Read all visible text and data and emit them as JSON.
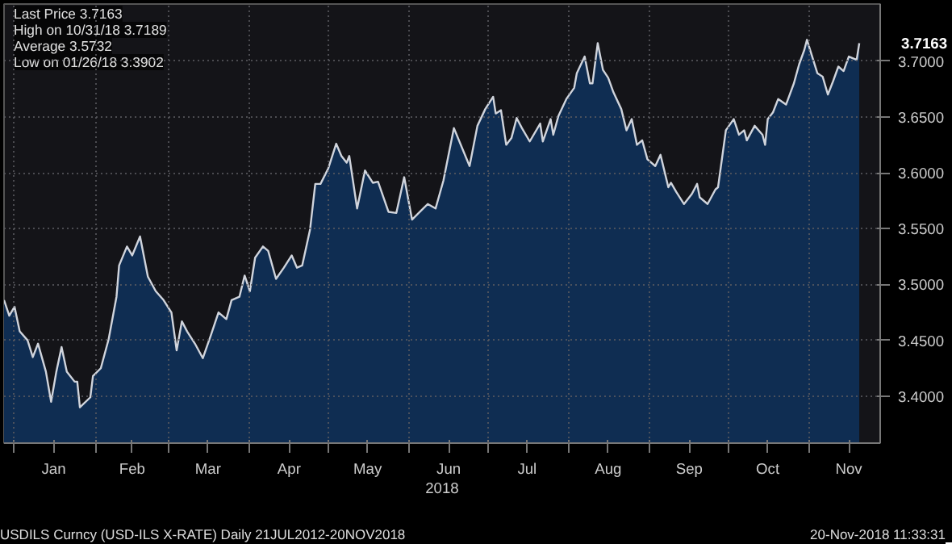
{
  "chart_data": {
    "type": "area",
    "xlabel": "2018",
    "x": [
      "2017-12-28",
      "2017-12-30",
      "2018-01-01",
      "2018-01-03",
      "2018-01-06",
      "2018-01-08",
      "2018-01-10",
      "2018-01-13",
      "2018-01-15",
      "2018-01-17",
      "2018-01-19",
      "2018-01-21",
      "2018-01-24",
      "2018-01-25",
      "2018-01-26",
      "2018-01-30",
      "2018-01-31",
      "2018-02-03",
      "2018-02-06",
      "2018-02-09",
      "2018-02-10",
      "2018-02-13",
      "2018-02-15",
      "2018-02-18",
      "2018-02-21",
      "2018-02-24",
      "2018-02-27",
      "2018-03-02",
      "2018-03-04",
      "2018-03-06",
      "2018-03-08",
      "2018-03-11",
      "2018-03-14",
      "2018-03-17",
      "2018-03-20",
      "2018-03-23",
      "2018-03-25",
      "2018-03-28",
      "2018-03-30",
      "2018-04-01",
      "2018-04-03",
      "2018-04-06",
      "2018-04-08",
      "2018-04-11",
      "2018-04-14",
      "2018-04-17",
      "2018-04-19",
      "2018-04-21",
      "2018-04-24",
      "2018-04-26",
      "2018-04-28",
      "2018-05-01",
      "2018-05-04",
      "2018-05-06",
      "2018-05-08",
      "2018-05-09",
      "2018-05-12",
      "2018-05-15",
      "2018-05-18",
      "2018-05-20",
      "2018-05-24",
      "2018-05-27",
      "2018-05-30",
      "2018-06-02",
      "2018-06-05",
      "2018-06-08",
      "2018-06-11",
      "2018-06-14",
      "2018-06-18",
      "2018-06-21",
      "2018-06-24",
      "2018-06-27",
      "2018-06-30",
      "2018-07-03",
      "2018-07-04",
      "2018-07-06",
      "2018-07-08",
      "2018-07-10",
      "2018-07-12",
      "2018-07-14",
      "2018-07-17",
      "2018-07-21",
      "2018-07-22",
      "2018-07-25",
      "2018-07-26",
      "2018-07-28",
      "2018-07-31",
      "2018-08-03",
      "2018-08-04",
      "2018-08-07",
      "2018-08-09",
      "2018-08-10",
      "2018-08-12",
      "2018-08-14",
      "2018-08-16",
      "2018-08-18",
      "2018-08-21",
      "2018-08-23",
      "2018-08-25",
      "2018-08-27",
      "2018-08-29",
      "2018-08-31",
      "2018-09-03",
      "2018-09-05",
      "2018-09-08",
      "2018-09-09",
      "2018-09-11",
      "2018-09-14",
      "2018-09-17",
      "2018-09-19",
      "2018-09-20",
      "2018-09-23",
      "2018-09-26",
      "2018-09-27",
      "2018-09-30",
      "2018-10-03",
      "2018-10-05",
      "2018-10-07",
      "2018-10-08",
      "2018-10-11",
      "2018-10-14",
      "2018-10-15",
      "2018-10-16",
      "2018-10-18",
      "2018-10-20",
      "2018-10-23",
      "2018-10-26",
      "2018-10-28",
      "2018-10-30",
      "2018-10-31",
      "2018-11-04",
      "2018-11-06",
      "2018-11-08",
      "2018-11-10",
      "2018-11-12",
      "2018-11-14",
      "2018-11-16",
      "2018-11-19",
      "2018-11-20"
    ],
    "series": [
      {
        "color": "#0f2d52",
        "values": [
          3.486,
          3.472,
          3.48,
          3.458,
          3.45,
          3.435,
          3.447,
          3.422,
          3.395,
          3.422,
          3.444,
          3.422,
          3.413,
          3.413,
          3.39,
          3.399,
          3.418,
          3.425,
          3.451,
          3.489,
          3.517,
          3.534,
          3.526,
          3.543,
          3.507,
          3.494,
          3.486,
          3.475,
          3.441,
          3.467,
          3.458,
          3.447,
          3.434,
          3.454,
          3.475,
          3.469,
          3.486,
          3.489,
          3.508,
          3.494,
          3.524,
          3.534,
          3.53,
          3.505,
          3.515,
          3.526,
          3.515,
          3.517,
          3.549,
          3.59,
          3.59,
          3.604,
          3.626,
          3.615,
          3.609,
          3.615,
          3.568,
          3.602,
          3.591,
          3.592,
          3.565,
          3.564,
          3.596,
          3.558,
          3.565,
          3.572,
          3.568,
          3.593,
          3.64,
          3.623,
          3.606,
          3.642,
          3.657,
          3.668,
          3.653,
          3.656,
          3.625,
          3.631,
          3.649,
          3.64,
          3.628,
          3.644,
          3.628,
          3.648,
          3.634,
          3.651,
          3.666,
          3.676,
          3.689,
          3.704,
          3.68,
          3.68,
          3.716,
          3.692,
          3.685,
          3.672,
          3.657,
          3.638,
          3.648,
          3.625,
          3.629,
          3.612,
          3.606,
          3.616,
          3.587,
          3.591,
          3.583,
          3.572,
          3.581,
          3.59,
          3.578,
          3.572,
          3.585,
          3.587,
          3.638,
          3.648,
          3.634,
          3.638,
          3.629,
          3.642,
          3.634,
          3.625,
          3.648,
          3.654,
          3.666,
          3.661,
          3.68,
          3.697,
          3.71,
          3.719,
          3.689,
          3.686,
          3.67,
          3.682,
          3.695,
          3.691,
          3.704,
          3.701,
          3.716
        ]
      }
    ],
    "xlim": [
      "2017-12-28",
      "2018-11-28"
    ],
    "xticks": [
      {
        "value": "2018-01-01",
        "label": null
      },
      {
        "value": "2018-01-16",
        "label": "Jan"
      },
      {
        "value": "2018-02-01",
        "label": null
      },
      {
        "value": "2018-02-15",
        "label": "Feb"
      },
      {
        "value": "2018-03-01",
        "label": null
      },
      {
        "value": "2018-03-16",
        "label": "Mar"
      },
      {
        "value": "2018-04-01",
        "label": null
      },
      {
        "value": "2018-04-16",
        "label": "Apr"
      },
      {
        "value": "2018-05-01",
        "label": null
      },
      {
        "value": "2018-05-16",
        "label": "May"
      },
      {
        "value": "2018-06-01",
        "label": null
      },
      {
        "value": "2018-06-16",
        "label": "Jun"
      },
      {
        "value": "2018-07-01",
        "label": null
      },
      {
        "value": "2018-07-16",
        "label": "Jul"
      },
      {
        "value": "2018-08-01",
        "label": null
      },
      {
        "value": "2018-08-16",
        "label": "Aug"
      },
      {
        "value": "2018-09-01",
        "label": null
      },
      {
        "value": "2018-09-16",
        "label": "Sep"
      },
      {
        "value": "2018-10-01",
        "label": null
      },
      {
        "value": "2018-10-16",
        "label": "Oct"
      },
      {
        "value": "2018-11-01",
        "label": null
      },
      {
        "value": "2018-11-16",
        "label": "Nov"
      }
    ],
    "ylim": [
      3.358,
      3.751
    ],
    "yticks": [
      {
        "value": 3.4,
        "label": "3.4000"
      },
      {
        "value": 3.45,
        "label": "3.4500"
      },
      {
        "value": 3.5,
        "label": "3.5000"
      },
      {
        "value": 3.55,
        "label": "3.5500"
      },
      {
        "value": 3.6,
        "label": "3.6000"
      },
      {
        "value": 3.65,
        "label": "3.6500"
      },
      {
        "value": 3.7,
        "label": "3.7000"
      }
    ],
    "grid": true,
    "annotations": [
      "Last Price 3.7163",
      "High on 10/31/18 3.7189",
      "Average 3.5732",
      "Low on 01/26/18 3.3902",
      "3.7163",
      "USDILS Curncy (USD-ILS X-RATE)  Daily 21JUL2012-20NOV2018",
      "20-Nov-2018 11:33:31"
    ]
  }
}
